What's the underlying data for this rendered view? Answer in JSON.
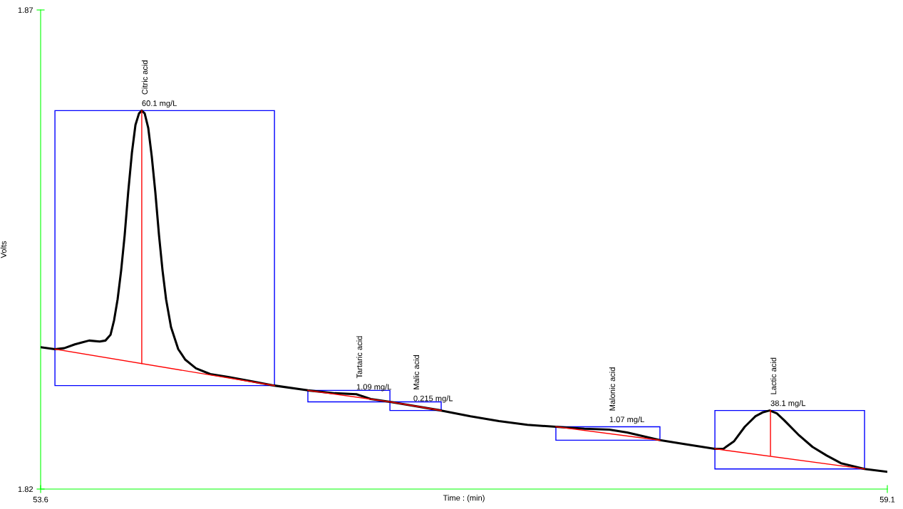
{
  "chart_data": {
    "type": "line",
    "xlabel": "Time : (min)",
    "ylabel": "Volts",
    "xlim": [
      53.6,
      59.1
    ],
    "ylim": [
      1.82,
      1.87
    ],
    "xticks": [
      53.6,
      59.1
    ],
    "yticks": [
      1.82,
      1.87
    ],
    "marker": "none",
    "line_style": "solid",
    "series": [
      {
        "color": "#000000",
        "x": [
          53.6,
          53.693,
          53.753,
          53.822,
          53.869,
          53.915,
          53.984,
          54.021,
          54.054,
          54.077,
          54.1,
          54.123,
          54.146,
          54.169,
          54.193,
          54.216,
          54.239,
          54.257,
          54.276,
          54.299,
          54.322,
          54.345,
          54.369,
          54.392,
          54.415,
          54.447,
          54.494,
          54.54,
          54.609,
          54.702,
          54.818,
          54.956,
          55.119,
          55.336,
          55.512,
          55.651,
          55.744,
          55.869,
          56.021,
          56.202,
          56.392,
          56.577,
          56.762,
          56.947,
          57.132,
          57.294,
          57.41,
          57.623,
          57.781,
          57.98,
          58.035,
          58.105,
          58.174,
          58.244,
          58.29,
          58.336,
          58.382,
          58.429,
          58.521,
          58.614,
          58.706,
          58.799,
          58.952,
          59.1
        ],
        "values": [
          1.8348,
          1.8346,
          1.8347,
          1.8351,
          1.8353,
          1.8355,
          1.8354,
          1.8355,
          1.8361,
          1.8376,
          1.8398,
          1.8428,
          1.8465,
          1.851,
          1.8551,
          1.858,
          1.8592,
          1.8595,
          1.8592,
          1.8577,
          1.8547,
          1.851,
          1.8465,
          1.8428,
          1.8398,
          1.8369,
          1.8346,
          1.8335,
          1.8326,
          1.832,
          1.8317,
          1.8313,
          1.8308,
          1.8303,
          1.83,
          1.8299,
          1.8294,
          1.8291,
          1.8287,
          1.8282,
          1.8276,
          1.8271,
          1.8267,
          1.8265,
          1.8263,
          1.8262,
          1.8259,
          1.8251,
          1.8247,
          1.8242,
          1.8242,
          1.825,
          1.8265,
          1.8276,
          1.828,
          1.8282,
          1.8279,
          1.8272,
          1.8257,
          1.8244,
          1.8235,
          1.8227,
          1.8221,
          1.8218
        ]
      },
      {
        "color": "#ff0000",
        "x": [
          53.693,
          55.119
        ],
        "values": [
          1.8346,
          1.8308
        ]
      },
      {
        "color": "#ff0000",
        "x": [
          54.257,
          54.257
        ],
        "values": [
          1.8331,
          1.8595
        ]
      },
      {
        "color": "#ff0000",
        "x": [
          55.336,
          55.869
        ],
        "values": [
          1.8303,
          1.8291
        ]
      },
      {
        "color": "#ff0000",
        "x": [
          55.869,
          56.202
        ],
        "values": [
          1.8291,
          1.8282
        ]
      },
      {
        "color": "#ff0000",
        "x": [
          56.947,
          57.623
        ],
        "values": [
          1.8265,
          1.8251
        ]
      },
      {
        "color": "#ff0000",
        "x": [
          57.98,
          58.952
        ],
        "values": [
          1.8242,
          1.8221
        ]
      },
      {
        "color": "#ff0000",
        "x": [
          58.341,
          58.341
        ],
        "values": [
          1.8235,
          1.8282
        ]
      }
    ],
    "annotations": [
      {
        "text": "Citric acid",
        "x": 54.257,
        "y": 1.8595
      },
      {
        "text": "60.1 mg/L",
        "x": 54.257,
        "y": 1.8595
      },
      {
        "text": "Tartaric acid",
        "x": 55.651,
        "y": 1.8299
      },
      {
        "text": "1.09 mg/L",
        "x": 55.651,
        "y": 1.8299
      },
      {
        "text": "Malic acid",
        "x": 56.021,
        "y": 1.8287
      },
      {
        "text": "0.215 mg/L",
        "x": 56.021,
        "y": 1.8287
      },
      {
        "text": "Malonic acid",
        "x": 57.294,
        "y": 1.8265
      },
      {
        "text": "1.07 mg/L",
        "x": 57.294,
        "y": 1.8265
      },
      {
        "text": "Lactic acid",
        "x": 58.341,
        "y": 1.8282
      },
      {
        "text": "38.1 mg/L",
        "x": 58.341,
        "y": 1.8282
      }
    ]
  }
}
